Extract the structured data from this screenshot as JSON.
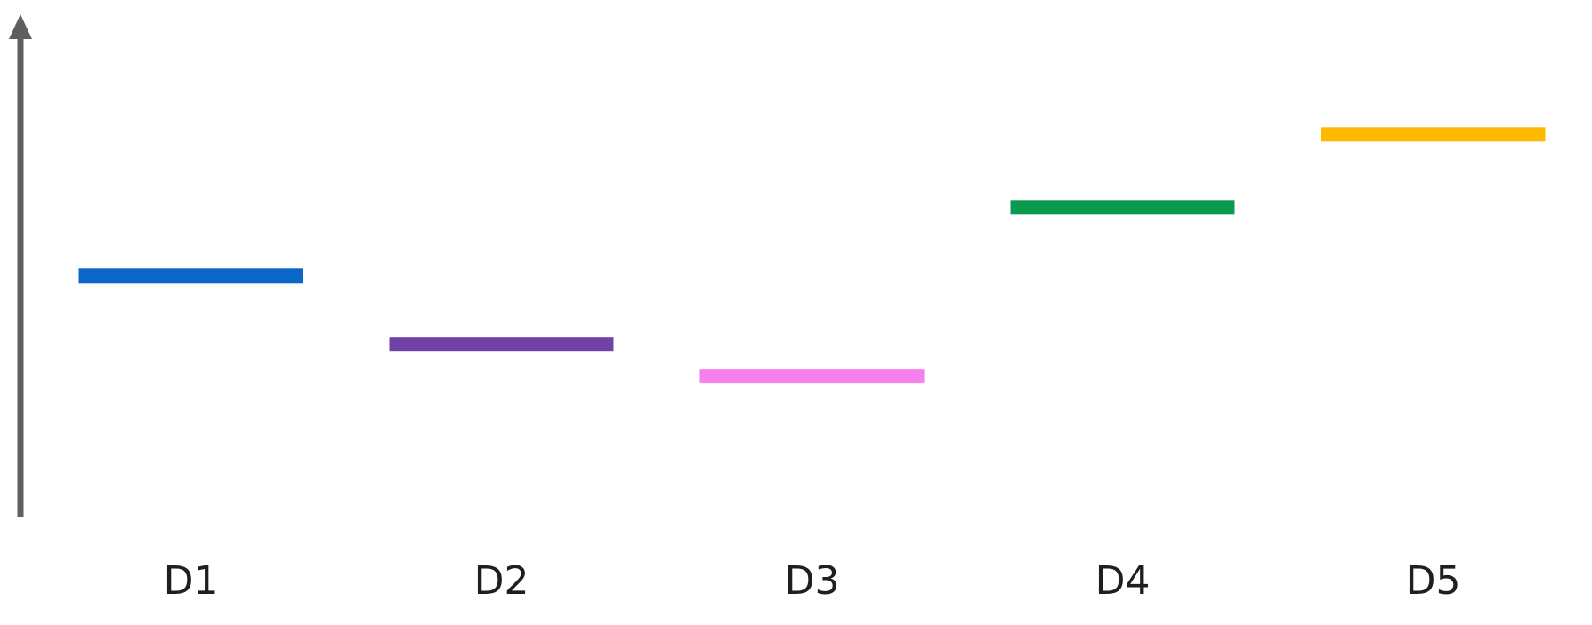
{
  "chart_data": {
    "type": "bar",
    "subtype": "level-markers",
    "title": "",
    "xlabel": "",
    "ylabel": "",
    "categories": [
      "D1",
      "D2",
      "D3",
      "D4",
      "D5"
    ],
    "values": [
      5.3,
      3.8,
      3.1,
      6.8,
      8.4
    ],
    "ylim": [
      0,
      11
    ],
    "grid": false,
    "legend": "none",
    "series_colors": [
      "#0B66C8",
      "#7041A6",
      "#F77FEE",
      "#0A9A4D",
      "#FFB800"
    ],
    "axis_color": "#5f5f5f"
  }
}
